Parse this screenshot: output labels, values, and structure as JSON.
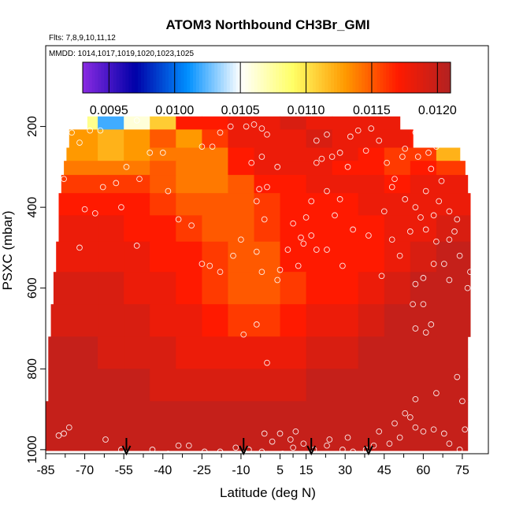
{
  "chart_data": {
    "type": "heatmap",
    "title": "ATOM3 Northbound CH3Br_GMI",
    "flights_label": "Flts: 7,8,9,10,11,12",
    "dates_label": "MMDD: 1014,1017,1019,1020,1023,1025",
    "xlabel": "Latitude (deg N)",
    "ylabel": "PSXC (mbar)",
    "x_ticks": [
      -85,
      -70,
      -55,
      -40,
      -25,
      -10,
      5,
      15,
      30,
      45,
      60,
      75
    ],
    "x_tick_labels": [
      "-85",
      "-70",
      "-55",
      "-40",
      "-25",
      "-10",
      "5",
      "15",
      "30",
      "45",
      "60",
      "75"
    ],
    "xlim": [
      -85,
      85
    ],
    "y_ticks": [
      200,
      400,
      600,
      800,
      1000
    ],
    "y_tick_labels": [
      "200",
      "400",
      "600",
      "800",
      "1000"
    ],
    "ylim": [
      1010,
      0
    ],
    "colorbar": {
      "min": 0.0093,
      "max": 0.0121,
      "ticks": [
        0.0095,
        0.01,
        0.0105,
        0.011,
        0.0115,
        0.012
      ],
      "tick_labels": [
        "0.0095",
        "0.0100",
        "0.0105",
        "0.0110",
        "0.0115",
        "0.0120"
      ],
      "colors": [
        "#8a2be2",
        "#0000a8",
        "#0090ff",
        "#ffffff",
        "#ffff66",
        "#ff9900",
        "#ff1a00",
        "#b22222"
      ]
    },
    "field": {
      "pressure_levels": [
        180,
        235,
        270,
        300,
        340,
        390,
        450,
        520,
        600,
        680,
        760,
        840,
        920,
        990
      ],
      "x_edges": [
        -73,
        -65,
        -55,
        -45,
        -35,
        -25,
        -15,
        -5,
        5,
        15,
        25,
        35,
        45,
        55,
        65,
        73
      ],
      "top_left_edge": [
        -69,
        -76,
        -77,
        -78,
        -79,
        -80,
        -80,
        -81,
        -82,
        -83,
        -84,
        -84,
        -85,
        -85
      ],
      "right_edge": [
        51,
        56,
        74,
        76,
        77,
        78,
        78,
        78,
        78,
        78,
        77,
        77,
        77,
        77
      ],
      "values": [
        [
          0.0108,
          0.0102,
          0.0106,
          0.0111,
          0.0117,
          0.0117,
          0.0118,
          0.0118,
          0.0119,
          0.0118,
          0.0118,
          0.0118,
          0.0118,
          0.0118,
          0.0117
        ],
        [
          0.0113,
          0.0112,
          0.0113,
          0.0115,
          0.0113,
          0.0116,
          0.0118,
          0.0118,
          0.0118,
          0.0119,
          0.0118,
          0.0118,
          0.0118,
          0.0117,
          0.0118
        ],
        [
          0.0113,
          0.0112,
          0.0113,
          0.0114,
          0.0114,
          0.0114,
          0.0117,
          0.0118,
          0.0118,
          0.0118,
          0.0118,
          0.0117,
          0.0116,
          0.0116,
          0.0112
        ],
        [
          0.0114,
          0.0114,
          0.0114,
          0.0115,
          0.0114,
          0.0114,
          0.0117,
          0.0118,
          0.0118,
          0.0118,
          0.0117,
          0.0117,
          0.0116,
          0.0117,
          0.0116
        ],
        [
          0.0116,
          0.0116,
          0.0116,
          0.0115,
          0.0114,
          0.0114,
          0.0115,
          0.0117,
          0.0117,
          0.0118,
          0.0118,
          0.0118,
          0.0117,
          0.0118,
          0.0118
        ],
        [
          0.0117,
          0.0117,
          0.0117,
          0.0116,
          0.0115,
          0.0115,
          0.0115,
          0.0116,
          0.0117,
          0.0117,
          0.0117,
          0.0118,
          0.0118,
          0.0118,
          0.0118
        ],
        [
          0.0118,
          0.0118,
          0.0117,
          0.0117,
          0.0116,
          0.0115,
          0.0115,
          0.0116,
          0.0117,
          0.0117,
          0.0117,
          0.0117,
          0.0118,
          0.0118,
          0.0119
        ],
        [
          0.0118,
          0.0118,
          0.0118,
          0.0117,
          0.0117,
          0.0116,
          0.0115,
          0.0115,
          0.0117,
          0.0117,
          0.0117,
          0.0117,
          0.0118,
          0.0119,
          0.012
        ],
        [
          0.0119,
          0.0119,
          0.0118,
          0.0118,
          0.0117,
          0.0116,
          0.0115,
          0.0115,
          0.0116,
          0.0117,
          0.0117,
          0.0118,
          0.0119,
          0.012,
          0.012
        ],
        [
          0.0119,
          0.0119,
          0.0119,
          0.0118,
          0.0118,
          0.0117,
          0.0116,
          0.0116,
          0.0117,
          0.0118,
          0.0118,
          0.0119,
          0.012,
          0.012,
          0.012
        ],
        [
          0.012,
          0.0119,
          0.0119,
          0.0119,
          0.0118,
          0.0118,
          0.0118,
          0.0118,
          0.0118,
          0.0119,
          0.0119,
          0.012,
          0.012,
          0.012,
          0.012
        ],
        [
          0.012,
          0.012,
          0.012,
          0.0119,
          0.0119,
          0.0119,
          0.0119,
          0.0119,
          0.0119,
          0.012,
          0.012,
          0.012,
          0.012,
          0.012,
          0.012
        ],
        [
          0.012,
          0.012,
          0.012,
          0.012,
          0.012,
          0.012,
          0.012,
          0.012,
          0.012,
          0.012,
          0.012,
          0.012,
          0.012,
          0.012,
          0.012
        ],
        [
          0.012,
          0.012,
          0.012,
          0.012,
          0.012,
          0.012,
          0.012,
          0.012,
          0.012,
          0.012,
          0.012,
          0.012,
          0.012,
          0.012,
          0.012
        ]
      ]
    },
    "observations": [
      [
        -75,
        215
      ],
      [
        -72,
        240
      ],
      [
        -78,
        330
      ],
      [
        -70,
        405
      ],
      [
        -66,
        415
      ],
      [
        -72,
        500
      ],
      [
        -56,
        400
      ],
      [
        -50,
        495
      ],
      [
        -68,
        210
      ],
      [
        -64,
        210
      ],
      [
        -50,
        185
      ],
      [
        -45,
        265
      ],
      [
        -40,
        265
      ],
      [
        -38,
        360
      ],
      [
        -34,
        430
      ],
      [
        -29,
        445
      ],
      [
        -25,
        540
      ],
      [
        -22,
        545
      ],
      [
        -18,
        560
      ],
      [
        -13,
        520
      ],
      [
        -25,
        250
      ],
      [
        -21,
        250
      ],
      [
        -18,
        215
      ],
      [
        -14,
        200
      ],
      [
        -8,
        200
      ],
      [
        -5,
        195
      ],
      [
        -2,
        205
      ],
      [
        -6,
        290
      ],
      [
        -2,
        275
      ],
      [
        0,
        220
      ],
      [
        4,
        300
      ],
      [
        0,
        350
      ],
      [
        -3,
        355
      ],
      [
        -4,
        385
      ],
      [
        -1,
        430
      ],
      [
        -4,
        510
      ],
      [
        -10,
        480
      ],
      [
        -2,
        560
      ],
      [
        5,
        555
      ],
      [
        4,
        580
      ],
      [
        8,
        505
      ],
      [
        13,
        475
      ],
      [
        14,
        490
      ],
      [
        19,
        505
      ],
      [
        12,
        545
      ],
      [
        15,
        425
      ],
      [
        17,
        385
      ],
      [
        23,
        360
      ],
      [
        26,
        420
      ],
      [
        28,
        380
      ],
      [
        31,
        300
      ],
      [
        25,
        275
      ],
      [
        21,
        280
      ],
      [
        19,
        290
      ],
      [
        19,
        235
      ],
      [
        23,
        220
      ],
      [
        28,
        265
      ],
      [
        35,
        210
      ],
      [
        38,
        260
      ],
      [
        32,
        225
      ],
      [
        40,
        205
      ],
      [
        43,
        235
      ],
      [
        46,
        290
      ],
      [
        52,
        275
      ],
      [
        53,
        255
      ],
      [
        57,
        215
      ],
      [
        49,
        330
      ],
      [
        48,
        350
      ],
      [
        53,
        380
      ],
      [
        57,
        400
      ],
      [
        59,
        425
      ],
      [
        61,
        455
      ],
      [
        65,
        485
      ],
      [
        70,
        410
      ],
      [
        73,
        430
      ],
      [
        72,
        460
      ],
      [
        70,
        480
      ],
      [
        68,
        540
      ],
      [
        64,
        540
      ],
      [
        60,
        575
      ],
      [
        57,
        590
      ],
      [
        56,
        640
      ],
      [
        63,
        690
      ],
      [
        60,
        640
      ],
      [
        57,
        700
      ],
      [
        61,
        710
      ],
      [
        70,
        580
      ],
      [
        74,
        520
      ],
      [
        78,
        560
      ],
      [
        77,
        600
      ],
      [
        73,
        820
      ],
      [
        75,
        880
      ],
      [
        76,
        950
      ],
      [
        74,
        1000
      ],
      [
        70,
        985
      ],
      [
        68,
        960
      ],
      [
        64,
        950
      ],
      [
        60,
        955
      ],
      [
        57,
        945
      ],
      [
        55,
        920
      ],
      [
        51,
        970
      ],
      [
        47,
        985
      ],
      [
        43,
        955
      ],
      [
        38,
        1000
      ],
      [
        33,
        1005
      ],
      [
        29,
        1000
      ],
      [
        23,
        990
      ],
      [
        18,
        1000
      ],
      [
        14,
        985
      ],
      [
        10,
        995
      ],
      [
        6,
        1010
      ],
      [
        -2,
        1005
      ],
      [
        -7,
        1000
      ],
      [
        -12,
        995
      ],
      [
        -18,
        1005
      ],
      [
        -24,
        1005
      ],
      [
        -30,
        990
      ],
      [
        -34,
        990
      ],
      [
        -38,
        1010
      ],
      [
        -44,
        1000
      ],
      [
        -56,
        1000
      ],
      [
        -62,
        975
      ],
      [
        -78,
        960
      ],
      [
        -80,
        965
      ],
      [
        -76,
        945
      ],
      [
        0,
        785
      ],
      [
        -9,
        715
      ],
      [
        -4,
        690
      ],
      [
        11,
        955
      ],
      [
        9,
        975
      ],
      [
        5,
        960
      ],
      [
        2,
        980
      ],
      [
        -1,
        960
      ],
      [
        41,
        990
      ],
      [
        31,
        970
      ],
      [
        24,
        975
      ],
      [
        49,
        935
      ],
      [
        53,
        910
      ],
      [
        57,
        875
      ],
      [
        65,
        860
      ],
      [
        -63,
        350
      ],
      [
        -49,
        330
      ],
      [
        -54,
        300
      ],
      [
        -58,
        340
      ],
      [
        44,
        570
      ],
      [
        51,
        520
      ],
      [
        48,
        480
      ],
      [
        39,
        470
      ],
      [
        33,
        455
      ],
      [
        29,
        545
      ],
      [
        23,
        505
      ],
      [
        17,
        470
      ],
      [
        10,
        440
      ],
      [
        55,
        460
      ],
      [
        64,
        420
      ],
      [
        66,
        385
      ],
      [
        61,
        360
      ],
      [
        67,
        335
      ],
      [
        63,
        305
      ],
      [
        58,
        275
      ],
      [
        62,
        265
      ],
      [
        65,
        250
      ],
      [
        70,
        205
      ],
      [
        74,
        225
      ],
      [
        45,
        410
      ]
    ],
    "flight_markers_lat": [
      -54,
      -9,
      17,
      39
    ]
  }
}
